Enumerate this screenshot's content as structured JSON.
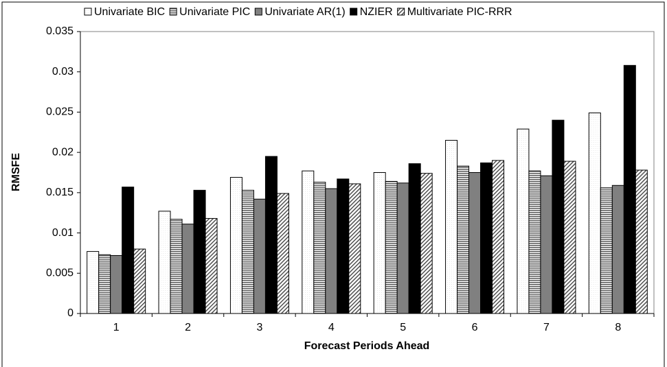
{
  "chart_data": {
    "type": "bar",
    "x_label": "Forecast Periods Ahead",
    "y_label": "RMSFE",
    "categories": [
      "1",
      "2",
      "3",
      "4",
      "5",
      "6",
      "7",
      "8"
    ],
    "series": [
      {
        "name": "Univariate BIC",
        "color": "#e8e8e8",
        "values": [
          0.0077,
          0.0127,
          0.0169,
          0.0177,
          0.0175,
          0.0215,
          0.0229,
          0.0249
        ]
      },
      {
        "name": "Univariate PIC",
        "color": "#606060",
        "values": [
          0.0073,
          0.0117,
          0.0153,
          0.0163,
          0.0164,
          0.0183,
          0.0177,
          0.0156
        ]
      },
      {
        "name": "Univariate AR(1)",
        "color": "#808080",
        "values": [
          0.0072,
          0.0111,
          0.0142,
          0.0155,
          0.0162,
          0.0175,
          0.0171,
          0.0159
        ]
      },
      {
        "name": "NZIER",
        "color": "#000000",
        "values": [
          0.0157,
          0.0153,
          0.0195,
          0.0167,
          0.0186,
          0.0187,
          0.024,
          0.0308
        ]
      },
      {
        "name": "Multivariate PIC-RRR",
        "color": "#505050",
        "values": [
          0.008,
          0.0118,
          0.0149,
          0.0161,
          0.0174,
          0.019,
          0.0189,
          0.0178
        ]
      }
    ],
    "ylim": [
      0,
      0.035
    ],
    "yticks": [
      0,
      0.005,
      0.01,
      0.015,
      0.02,
      0.025,
      0.03,
      0.035
    ],
    "grid": false,
    "legend": "top"
  }
}
